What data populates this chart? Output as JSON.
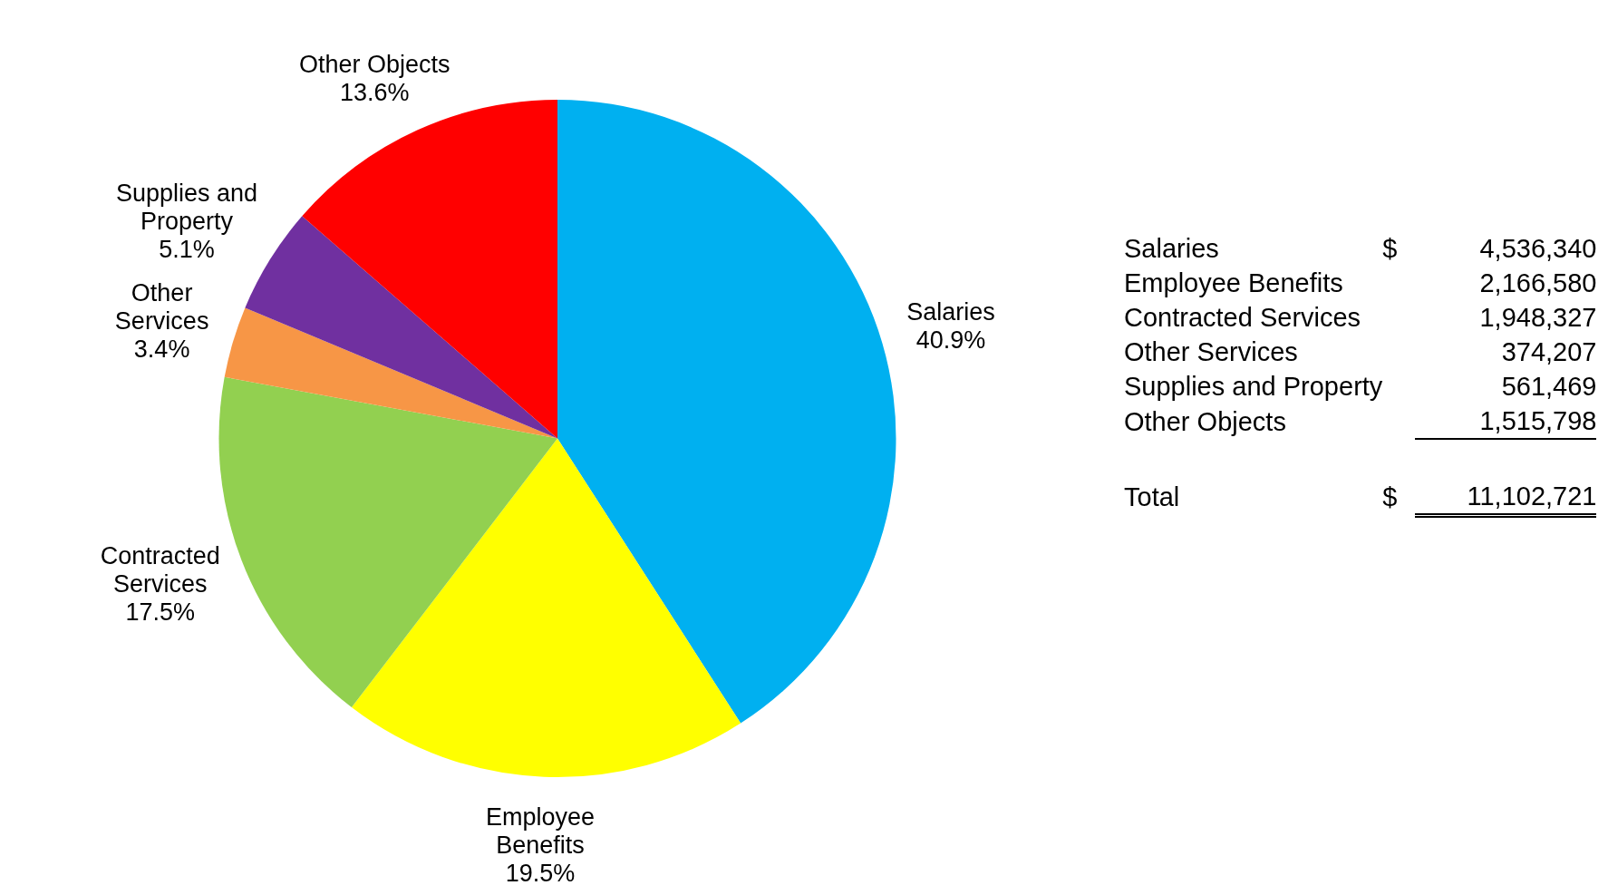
{
  "chart_data": {
    "type": "pie",
    "categories": [
      "Salaries",
      "Employee Benefits",
      "Contracted Services",
      "Other Services",
      "Supplies and Property",
      "Other Objects"
    ],
    "values": [
      40.9,
      19.5,
      17.5,
      3.4,
      5.1,
      13.6
    ],
    "colors": [
      "#00b0f0",
      "#ffff00",
      "#92d050",
      "#f79646",
      "#7030a0",
      "#ff0000"
    ],
    "value_labels": [
      "40.9%",
      "19.5%",
      "17.5%",
      "3.4%",
      "5.1%",
      "13.6%"
    ],
    "annotations": [
      "$",
      "4,536,340",
      "2,166,580",
      "1,948,327",
      "374,207",
      "561,469",
      "1,515,798",
      "Total",
      "11,102,721"
    ],
    "legend": false
  }
}
